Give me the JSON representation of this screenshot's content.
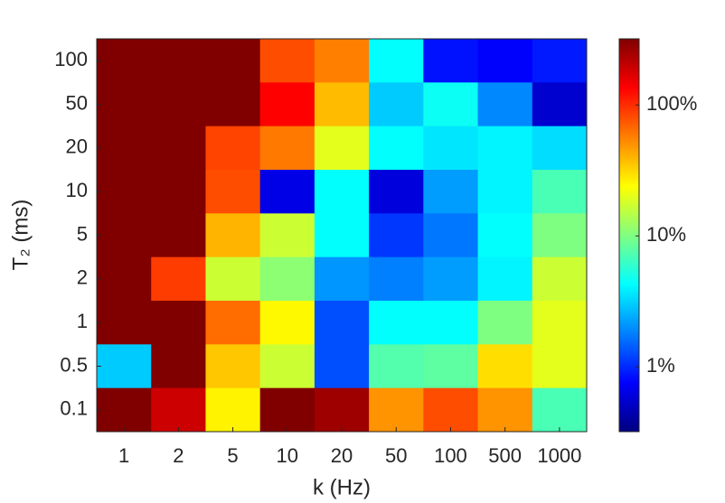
{
  "chart_data": {
    "type": "heatmap",
    "xlabel": "k (Hz)",
    "ylabel": "T₂ (ms)",
    "x_categories": [
      "1",
      "2",
      "5",
      "10",
      "20",
      "50",
      "100",
      "500",
      "1000"
    ],
    "y_categories": [
      "100",
      "50",
      "20",
      "10",
      "5",
      "2",
      "1",
      "0.5",
      "0.1"
    ],
    "z": [
      [
        320,
        320,
        320,
        80,
        57,
        4.3,
        0.85,
        0.75,
        0.9
      ],
      [
        320,
        320,
        320,
        135,
        38,
        3,
        4.6,
        1.9,
        0.55
      ],
      [
        320,
        320,
        85,
        60,
        20,
        4.3,
        3.6,
        4,
        3.4
      ],
      [
        320,
        320,
        80,
        0.64,
        4.3,
        0.6,
        2.2,
        4,
        7
      ],
      [
        320,
        320,
        40,
        17,
        4.3,
        1.1,
        1.7,
        4.3,
        10
      ],
      [
        320,
        90,
        17,
        11,
        2.1,
        1.8,
        2.2,
        4,
        17
      ],
      [
        320,
        320,
        65,
        25,
        1.3,
        4.3,
        4.3,
        10,
        20
      ],
      [
        3,
        320,
        35,
        17,
        1.3,
        7.5,
        8,
        30,
        20
      ],
      [
        320,
        190,
        26,
        320,
        260,
        50,
        80,
        50,
        7
      ]
    ],
    "colormap": "jet",
    "colorscale": "log",
    "clim": [
      0.32,
      320
    ],
    "cticks": [
      {
        "value": 1,
        "label": "1%"
      },
      {
        "value": 10,
        "label": "10%"
      },
      {
        "value": 100,
        "label": "100%"
      }
    ]
  }
}
